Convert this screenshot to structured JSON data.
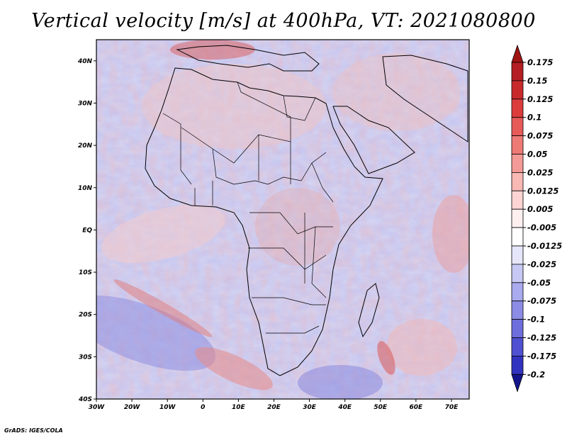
{
  "title": "Vertical velocity [m/s] at 400hPa, VT: 2021080800",
  "credit": "GrADS: IGES/COLA",
  "map": {
    "lon_range": [
      -30,
      75
    ],
    "lat_range": [
      -40,
      45
    ],
    "lat_ticks": [
      {
        "value": 40,
        "label": "40N"
      },
      {
        "value": 30,
        "label": "30N"
      },
      {
        "value": 20,
        "label": "20N"
      },
      {
        "value": 10,
        "label": "10N"
      },
      {
        "value": 0,
        "label": "EQ"
      },
      {
        "value": -10,
        "label": "10S"
      },
      {
        "value": -20,
        "label": "20S"
      },
      {
        "value": -30,
        "label": "30S"
      },
      {
        "value": -40,
        "label": "40S"
      }
    ],
    "lon_ticks": [
      {
        "value": -30,
        "label": "30W"
      },
      {
        "value": -20,
        "label": "20W"
      },
      {
        "value": -10,
        "label": "10W"
      },
      {
        "value": 0,
        "label": "0"
      },
      {
        "value": 10,
        "label": "10E"
      },
      {
        "value": 20,
        "label": "20E"
      },
      {
        "value": 30,
        "label": "30E"
      },
      {
        "value": 40,
        "label": "40E"
      },
      {
        "value": 50,
        "label": "50E"
      },
      {
        "value": 60,
        "label": "60E"
      },
      {
        "value": 70,
        "label": "70E"
      }
    ]
  },
  "colorbar": {
    "levels": [
      {
        "label": "0.175",
        "color": "#b41e22"
      },
      {
        "label": "0.15",
        "color": "#c82a2c"
      },
      {
        "label": "0.125",
        "color": "#dc3c3c"
      },
      {
        "label": "0.1",
        "color": "#e65a58"
      },
      {
        "label": "0.075",
        "color": "#ee7a76"
      },
      {
        "label": "0.05",
        "color": "#f49a96"
      },
      {
        "label": "0.025",
        "color": "#f8b8b4"
      },
      {
        "label": "0.0125",
        "color": "#fcd4d2"
      },
      {
        "label": "0.005",
        "color": "#fff0f0"
      },
      {
        "label": "-0.005",
        "color": "#ffffff"
      },
      {
        "label": "-0.0125",
        "color": "#e6e6fa"
      },
      {
        "label": "-0.025",
        "color": "#c8c8f4"
      },
      {
        "label": "-0.05",
        "color": "#aaaaee"
      },
      {
        "label": "-0.075",
        "color": "#8c8ce6"
      },
      {
        "label": "-0.1",
        "color": "#6e6edc"
      },
      {
        "label": "-0.125",
        "color": "#5050d2"
      },
      {
        "label": "-0.175",
        "color": "#3232c0"
      },
      {
        "label": "-0.2",
        "color": "#1e1ea8"
      }
    ],
    "top_color": "#a01414",
    "bottom_color": "#14148c"
  }
}
